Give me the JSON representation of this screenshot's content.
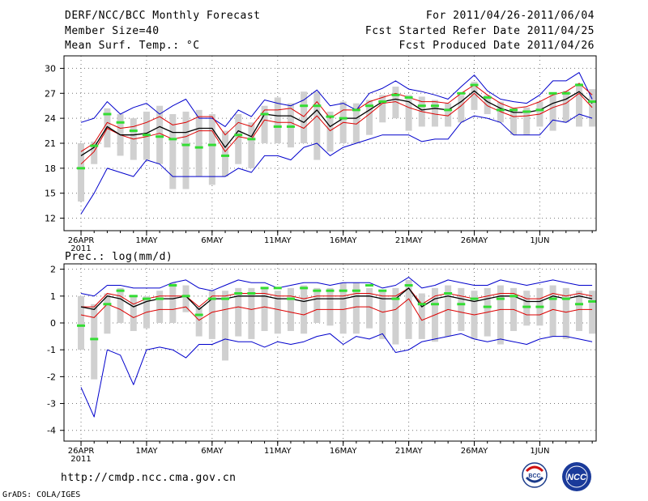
{
  "header": {
    "title": "DERF/NCC/BCC Monthly Forecast",
    "member_size": "Member Size=40",
    "variable": "Mean Surf. Temp.: °C",
    "forecast_period": "For 2011/04/26-2011/06/04",
    "started_date": "Fcst Started Refer Date 2011/04/25",
    "produced_date": "Fcst Produced Date 2011/04/26"
  },
  "precip_label": "Prec.: log(mm/d)",
  "footer": {
    "url": "http://cmdp.ncc.cma.gov.cn",
    "credit": "GrADS: COLA/IGES",
    "logo_bcc": "BCC",
    "logo_ncc": "NCC"
  },
  "colors": {
    "ensemble_mean": "#000000",
    "red_curve": "#dd0000",
    "blue_envelope": "#0000cc",
    "box": "#d0d0d0",
    "green_marker": "#33dd33"
  },
  "chart_data": [
    {
      "type": "line",
      "name": "temperature",
      "ylabel": "Mean Surf. Temp. (°C)",
      "ylim": [
        10.5,
        31.5
      ],
      "yticks": [
        12,
        15,
        18,
        21,
        24,
        27,
        30
      ],
      "xlim": [
        -1.3,
        39.3
      ],
      "xticks": [
        {
          "x": 0,
          "label": "26APR",
          "sub": "2011"
        },
        {
          "x": 5,
          "label": "1MAY"
        },
        {
          "x": 10,
          "label": "6MAY"
        },
        {
          "x": 15,
          "label": "11MAY"
        },
        {
          "x": 20,
          "label": "16MAY"
        },
        {
          "x": 25,
          "label": "21MAY"
        },
        {
          "x": 30,
          "label": "26MAY"
        },
        {
          "x": 35,
          "label": "1JUN"
        }
      ],
      "grid": true,
      "days": 40,
      "series": [
        {
          "name": "ensemble-mean",
          "values": [
            19.5,
            20.5,
            23.0,
            22.0,
            22.0,
            22.2,
            23.0,
            22.3,
            22.3,
            22.8,
            22.8,
            20.5,
            22.5,
            21.8,
            24.5,
            24.3,
            24.3,
            23.5,
            25.0,
            23.0,
            24.0,
            24.0,
            25.0,
            26.0,
            26.3,
            26.0,
            25.0,
            25.2,
            25.0,
            26.0,
            27.3,
            26.0,
            25.2,
            24.7,
            24.7,
            25.0,
            25.8,
            26.3,
            27.2,
            25.8
          ]
        },
        {
          "name": "upper-red",
          "values": [
            20.0,
            21.0,
            23.5,
            22.8,
            23.0,
            23.5,
            24.2,
            23.2,
            23.5,
            24.2,
            24.2,
            22.0,
            23.5,
            23.0,
            25.0,
            25.0,
            25.2,
            24.2,
            26.0,
            24.0,
            25.0,
            25.0,
            26.0,
            26.5,
            27.0,
            26.5,
            26.0,
            26.0,
            25.8,
            27.0,
            28.0,
            26.8,
            25.8,
            25.2,
            25.4,
            26.0,
            26.8,
            27.2,
            28.2,
            26.8
          ]
        },
        {
          "name": "lower-red",
          "values": [
            18.5,
            20.0,
            22.8,
            22.0,
            21.5,
            21.8,
            22.2,
            21.5,
            21.8,
            22.5,
            22.5,
            20.0,
            21.8,
            21.5,
            23.8,
            23.5,
            23.5,
            22.8,
            24.3,
            22.5,
            23.5,
            23.3,
            24.5,
            25.8,
            26.0,
            25.3,
            24.8,
            24.5,
            24.3,
            25.5,
            27.0,
            25.5,
            24.8,
            24.2,
            24.3,
            24.5,
            25.3,
            25.8,
            27.0,
            25.3
          ]
        },
        {
          "name": "upper-blue",
          "values": [
            23.5,
            24.0,
            26.0,
            24.5,
            25.3,
            25.8,
            24.5,
            25.5,
            26.3,
            24.0,
            24.0,
            23.0,
            25.0,
            24.2,
            26.2,
            25.8,
            25.5,
            26.2,
            27.4,
            25.5,
            25.8,
            25.0,
            27.0,
            27.6,
            28.5,
            27.5,
            27.2,
            26.8,
            26.3,
            27.8,
            29.2,
            27.3,
            26.3,
            26.0,
            25.8,
            26.8,
            28.5,
            28.5,
            29.5,
            26.3
          ]
        },
        {
          "name": "lower-blue",
          "values": [
            12.5,
            15.0,
            18.0,
            17.5,
            17.0,
            19.0,
            18.5,
            17.0,
            17.0,
            17.0,
            17.0,
            17.0,
            18.0,
            17.5,
            19.5,
            19.5,
            19.0,
            20.5,
            21.0,
            19.5,
            20.5,
            21.0,
            21.5,
            22.0,
            22.0,
            22.0,
            21.2,
            21.5,
            21.5,
            23.5,
            24.3,
            24.0,
            23.5,
            22.0,
            22.0,
            22.0,
            23.8,
            23.5,
            24.5,
            24.0
          ]
        },
        {
          "name": "box-top",
          "values": [
            21.0,
            21.2,
            25.2,
            24.5,
            24.0,
            24.8,
            25.5,
            24.5,
            24.8,
            25.0,
            24.5,
            22.5,
            24.5,
            23.5,
            25.5,
            26.5,
            25.8,
            27.2,
            27.2,
            24.8,
            26.0,
            25.8,
            26.2,
            26.8,
            27.8,
            26.8,
            26.6,
            26.2,
            25.8,
            26.8,
            28.4,
            26.8,
            26.0,
            25.2,
            25.3,
            26.0,
            27.0,
            27.3,
            28.2,
            27.5
          ]
        },
        {
          "name": "box-bottom",
          "values": [
            14.0,
            18.5,
            20.5,
            19.5,
            19.0,
            19.0,
            18.5,
            15.5,
            15.5,
            17.0,
            16.0,
            17.0,
            18.5,
            18.0,
            21.0,
            21.0,
            20.5,
            21.0,
            19.0,
            20.0,
            21.0,
            21.0,
            22.0,
            23.5,
            24.0,
            22.5,
            23.0,
            23.0,
            23.0,
            23.5,
            25.0,
            24.5,
            23.5,
            22.0,
            22.0,
            23.0,
            22.5,
            23.5,
            23.0,
            23.0
          ]
        },
        {
          "name": "observed-green",
          "values": [
            18.0,
            20.7,
            24.5,
            23.5,
            22.5,
            22.0,
            21.8,
            21.5,
            20.8,
            20.5,
            20.8,
            19.5,
            22.0,
            21.5,
            24.5,
            23.0,
            23.0,
            25.5,
            25.5,
            24.2,
            24.0,
            25.0,
            25.5,
            26.0,
            26.8,
            26.5,
            25.5,
            25.5,
            25.0,
            27.0,
            28.0,
            26.5,
            25.0,
            25.0,
            24.8,
            25.0,
            27.0,
            27.0,
            28.0,
            26.0
          ]
        }
      ]
    },
    {
      "type": "line",
      "name": "precipitation",
      "ylabel": "Prec.: log(mm/d)",
      "ylim": [
        -4.4,
        2.2
      ],
      "yticks": [
        -4,
        -3,
        -2,
        -1,
        0,
        1,
        2
      ],
      "xlim": [
        -1.3,
        39.3
      ],
      "xticks": [
        {
          "x": 0,
          "label": "26APR",
          "sub": "2011"
        },
        {
          "x": 5,
          "label": "1MAY"
        },
        {
          "x": 10,
          "label": "6MAY"
        },
        {
          "x": 15,
          "label": "11MAY"
        },
        {
          "x": 20,
          "label": "16MAY"
        },
        {
          "x": 25,
          "label": "21MAY"
        },
        {
          "x": 30,
          "label": "26MAY"
        },
        {
          "x": 35,
          "label": "1JUN"
        }
      ],
      "grid": true,
      "days": 40,
      "series": [
        {
          "name": "ensemble-mean",
          "values": [
            0.6,
            0.5,
            1.0,
            0.9,
            0.6,
            0.8,
            0.9,
            0.9,
            1.0,
            0.5,
            0.9,
            0.9,
            1.0,
            1.0,
            1.0,
            0.9,
            0.9,
            0.8,
            0.9,
            0.9,
            0.9,
            1.0,
            1.0,
            0.9,
            0.9,
            1.3,
            0.6,
            0.9,
            1.0,
            0.9,
            0.8,
            0.9,
            1.0,
            1.0,
            0.8,
            0.8,
            1.0,
            0.9,
            1.0,
            0.9
          ]
        },
        {
          "name": "upper-red",
          "values": [
            0.6,
            0.6,
            1.1,
            1.0,
            0.7,
            0.9,
            1.0,
            1.0,
            1.0,
            0.6,
            1.0,
            1.0,
            1.1,
            1.1,
            1.1,
            1.0,
            1.0,
            0.9,
            1.0,
            1.0,
            1.0,
            1.1,
            1.1,
            1.0,
            1.0,
            1.3,
            0.7,
            1.0,
            1.1,
            1.0,
            0.9,
            1.0,
            1.1,
            1.1,
            0.9,
            0.9,
            1.1,
            1.0,
            1.1,
            1.0
          ]
        },
        {
          "name": "lower-red",
          "values": [
            0.3,
            0.2,
            0.7,
            0.5,
            0.2,
            0.4,
            0.5,
            0.5,
            0.6,
            0.1,
            0.4,
            0.5,
            0.6,
            0.5,
            0.6,
            0.5,
            0.4,
            0.3,
            0.5,
            0.5,
            0.5,
            0.6,
            0.6,
            0.4,
            0.5,
            0.9,
            0.1,
            0.3,
            0.5,
            0.4,
            0.3,
            0.4,
            0.5,
            0.5,
            0.3,
            0.3,
            0.5,
            0.4,
            0.5,
            0.5
          ]
        },
        {
          "name": "upper-blue",
          "values": [
            1.1,
            1.0,
            1.4,
            1.4,
            1.3,
            1.3,
            1.3,
            1.5,
            1.6,
            1.3,
            1.2,
            1.4,
            1.6,
            1.5,
            1.5,
            1.3,
            1.4,
            1.5,
            1.5,
            1.4,
            1.5,
            1.5,
            1.5,
            1.3,
            1.4,
            1.7,
            1.3,
            1.4,
            1.6,
            1.5,
            1.4,
            1.4,
            1.6,
            1.5,
            1.4,
            1.5,
            1.6,
            1.5,
            1.4,
            1.4
          ]
        },
        {
          "name": "lower-blue",
          "values": [
            -2.4,
            -3.5,
            -1.0,
            -1.2,
            -2.3,
            -1.0,
            -0.9,
            -1.0,
            -1.3,
            -0.8,
            -0.8,
            -0.6,
            -0.7,
            -0.7,
            -0.9,
            -0.7,
            -0.8,
            -0.7,
            -0.5,
            -0.4,
            -0.8,
            -0.5,
            -0.6,
            -0.4,
            -1.1,
            -1.0,
            -0.7,
            -0.6,
            -0.5,
            -0.4,
            -0.6,
            -0.7,
            -0.6,
            -0.7,
            -0.8,
            -0.6,
            -0.5,
            -0.5,
            -0.6,
            -0.7
          ]
        },
        {
          "name": "box-top",
          "values": [
            1.0,
            0.7,
            1.1,
            1.3,
            1.0,
            1.0,
            1.2,
            1.5,
            1.4,
            0.6,
            1.2,
            1.2,
            1.3,
            1.3,
            1.3,
            1.2,
            1.3,
            1.4,
            1.3,
            1.3,
            1.5,
            1.5,
            1.3,
            1.2,
            1.3,
            1.6,
            1.1,
            1.3,
            1.4,
            1.3,
            1.2,
            1.3,
            1.4,
            1.3,
            1.2,
            1.3,
            1.4,
            1.3,
            1.2,
            1.2
          ]
        },
        {
          "name": "box-bottom",
          "values": [
            -1.0,
            -2.1,
            -0.4,
            0.0,
            -0.3,
            -0.2,
            0.0,
            0.0,
            0.4,
            -0.5,
            -0.6,
            -1.4,
            -0.5,
            -0.6,
            -0.3,
            -0.4,
            -0.3,
            -0.4,
            0.0,
            -0.1,
            -0.4,
            -0.4,
            -0.2,
            -0.6,
            -0.8,
            -0.6,
            -0.6,
            -0.7,
            -0.5,
            -0.3,
            -0.6,
            -0.5,
            -0.8,
            -0.3,
            -0.1,
            -0.1,
            -0.5,
            -0.6,
            -0.3,
            -0.4
          ]
        },
        {
          "name": "observed-green",
          "values": [
            -0.1,
            -0.6,
            0.7,
            1.2,
            1.0,
            0.9,
            0.9,
            1.4,
            1.0,
            0.3,
            0.9,
            0.9,
            1.1,
            1.1,
            1.3,
            1.3,
            0.9,
            1.3,
            1.2,
            1.2,
            1.2,
            1.2,
            1.4,
            1.2,
            0.9,
            1.4,
            0.7,
            0.7,
            1.1,
            0.7,
            0.9,
            0.6,
            0.9,
            1.0,
            0.6,
            0.6,
            0.9,
            0.9,
            0.7,
            0.8
          ]
        }
      ]
    }
  ]
}
